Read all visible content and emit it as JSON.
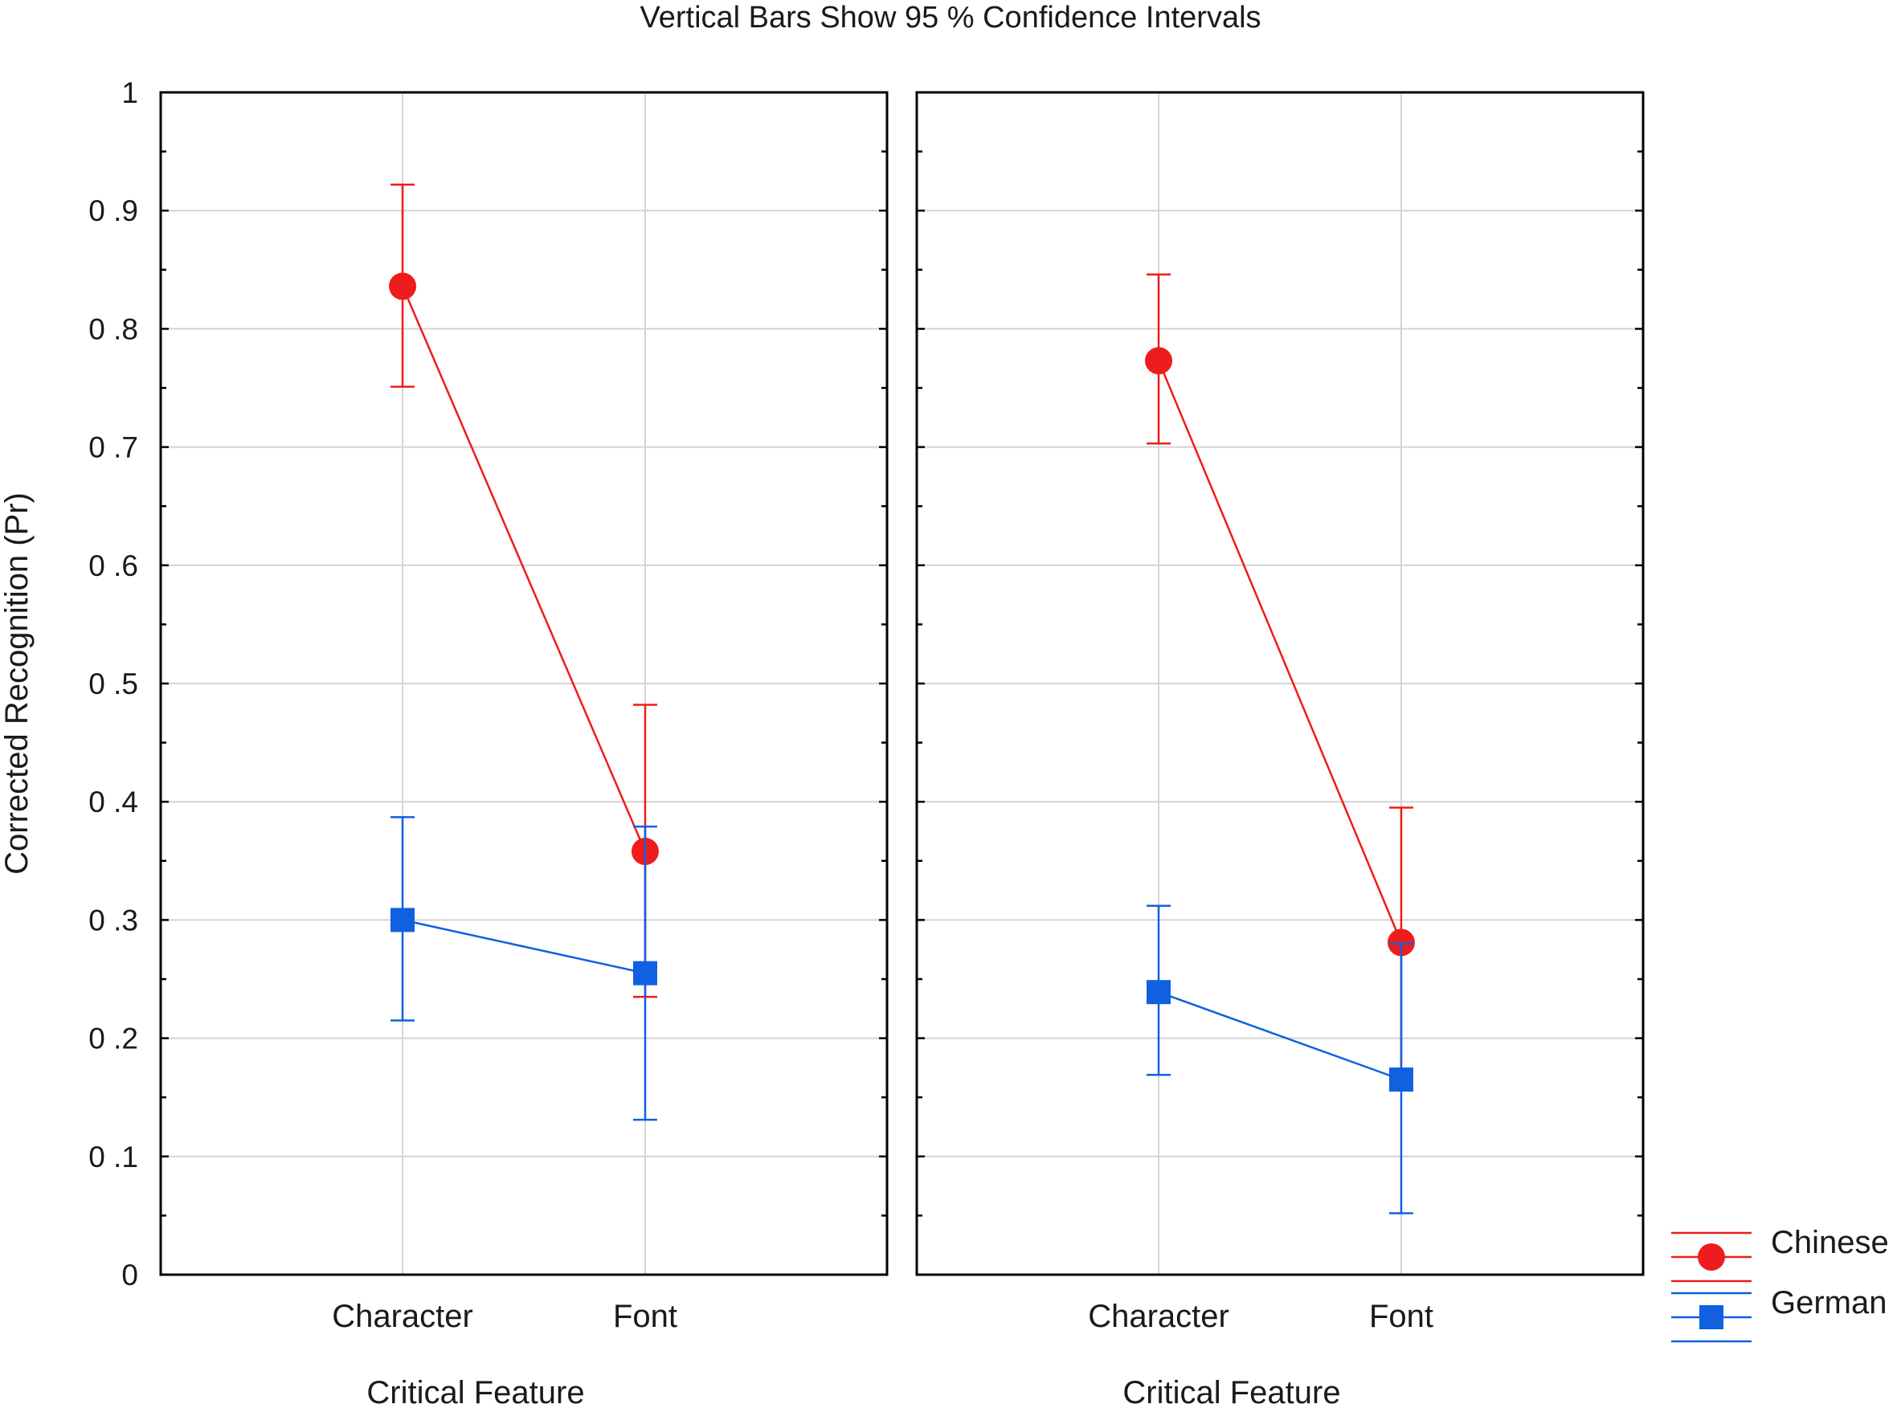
{
  "chart_data": {
    "type": "line",
    "title": "Vertical Bars Show 95 % Confidence Intervals",
    "ylabel": "Corrected Recognition (Pr)",
    "ylim": [
      0,
      1
    ],
    "yticks": [
      "0",
      "0 .1",
      "0 .2",
      "0 .3",
      "0 .4",
      "0 .5",
      "0 .6",
      "0 .7",
      "0 .8",
      "0 .9",
      "1"
    ],
    "grid": true,
    "legend": {
      "position": "bottom-right",
      "entries": [
        "Chinese",
        "German"
      ]
    },
    "panels": [
      {
        "xlabel": "Critical Feature",
        "categories": [
          "Character",
          "Font"
        ],
        "series": [
          {
            "name": "Chinese",
            "color": "#ee1c1c",
            "marker": "circle",
            "values": [
              0.836,
              0.358
            ],
            "ci_low": [
              0.751,
              0.235
            ],
            "ci_high": [
              0.922,
              0.482
            ]
          },
          {
            "name": "German",
            "color": "#1060e0",
            "marker": "square",
            "values": [
              0.3,
              0.255
            ],
            "ci_low": [
              0.215,
              0.131
            ],
            "ci_high": [
              0.387,
              0.379
            ]
          }
        ]
      },
      {
        "xlabel": "Critical Feature",
        "categories": [
          "Character",
          "Font"
        ],
        "series": [
          {
            "name": "Chinese",
            "color": "#ee1c1c",
            "marker": "circle",
            "values": [
              0.773,
              0.281
            ],
            "ci_low": [
              0.703,
              0.168
            ],
            "ci_high": [
              0.846,
              0.395
            ]
          },
          {
            "name": "German",
            "color": "#1060e0",
            "marker": "square",
            "values": [
              0.239,
              0.165
            ],
            "ci_low": [
              0.169,
              0.052
            ],
            "ci_high": [
              0.312,
              0.28
            ]
          }
        ]
      }
    ]
  }
}
